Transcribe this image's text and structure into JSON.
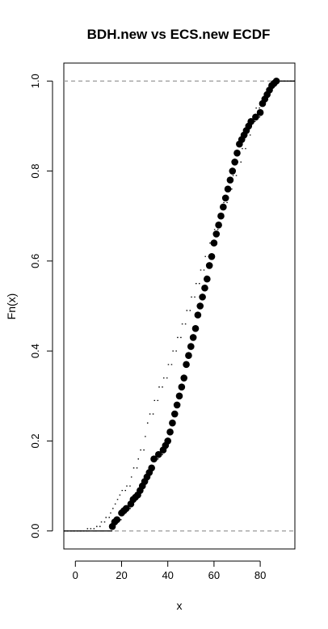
{
  "chart_data": {
    "type": "line",
    "title": "BDH.new vs ECS.new ECDF",
    "xlabel": "x",
    "ylabel": "Fn(x)",
    "xlim": [
      -5,
      95
    ],
    "ylim": [
      -0.04,
      1.04
    ],
    "x_ticks": [
      0,
      20,
      40,
      60,
      80
    ],
    "y_ticks": [
      0.0,
      0.2,
      0.4,
      0.6,
      0.8,
      1.0
    ],
    "x_tick_labels": [
      "0",
      "20",
      "40",
      "60",
      "80"
    ],
    "y_tick_labels": [
      "0.0",
      "0.2",
      "0.4",
      "0.6",
      "0.8",
      "1.0"
    ],
    "reference_lines": [
      0,
      1
    ],
    "series": [
      {
        "style": "step-points",
        "color": "#000000",
        "x": [
          16,
          17,
          18,
          20,
          21,
          22,
          24,
          25,
          26,
          27,
          28,
          29,
          30,
          31,
          32,
          33,
          34,
          36,
          38,
          39,
          40,
          41,
          42,
          43,
          44,
          45,
          46,
          47,
          48,
          49,
          50,
          51,
          52,
          53,
          54,
          55,
          56,
          57,
          58,
          59,
          60,
          61,
          62,
          63,
          64,
          65,
          66,
          67,
          68,
          69,
          70,
          71,
          72,
          73,
          74,
          75,
          76,
          78,
          80,
          81,
          82,
          83,
          84,
          85,
          86,
          87
        ],
        "y": [
          0.01,
          0.02,
          0.025,
          0.04,
          0.045,
          0.05,
          0.06,
          0.07,
          0.075,
          0.08,
          0.09,
          0.1,
          0.11,
          0.12,
          0.13,
          0.14,
          0.16,
          0.17,
          0.18,
          0.19,
          0.2,
          0.22,
          0.24,
          0.26,
          0.28,
          0.3,
          0.32,
          0.34,
          0.37,
          0.39,
          0.41,
          0.43,
          0.45,
          0.48,
          0.5,
          0.52,
          0.54,
          0.56,
          0.59,
          0.61,
          0.64,
          0.66,
          0.68,
          0.7,
          0.72,
          0.74,
          0.76,
          0.78,
          0.8,
          0.82,
          0.84,
          0.86,
          0.87,
          0.88,
          0.89,
          0.9,
          0.91,
          0.92,
          0.93,
          0.95,
          0.96,
          0.97,
          0.98,
          0.99,
          0.995,
          1.0
        ]
      },
      {
        "style": "dotted-step",
        "color": "#000000",
        "x": [
          5,
          9,
          11,
          13,
          15,
          16,
          17,
          18,
          19,
          20,
          22,
          24,
          25,
          27,
          28,
          30,
          31,
          32,
          34,
          36,
          38,
          40,
          42,
          44,
          46,
          48,
          50,
          52,
          54,
          56,
          58,
          60,
          62,
          64,
          66,
          68,
          70,
          72,
          74,
          76,
          78,
          80,
          82,
          84,
          86
        ],
        "y": [
          0.005,
          0.01,
          0.02,
          0.03,
          0.04,
          0.05,
          0.06,
          0.07,
          0.08,
          0.09,
          0.1,
          0.12,
          0.14,
          0.16,
          0.18,
          0.21,
          0.24,
          0.26,
          0.29,
          0.32,
          0.34,
          0.37,
          0.4,
          0.43,
          0.46,
          0.49,
          0.52,
          0.55,
          0.58,
          0.61,
          0.64,
          0.67,
          0.7,
          0.73,
          0.76,
          0.79,
          0.82,
          0.85,
          0.88,
          0.91,
          0.94,
          0.95,
          0.97,
          0.99,
          1.0
        ]
      }
    ]
  }
}
